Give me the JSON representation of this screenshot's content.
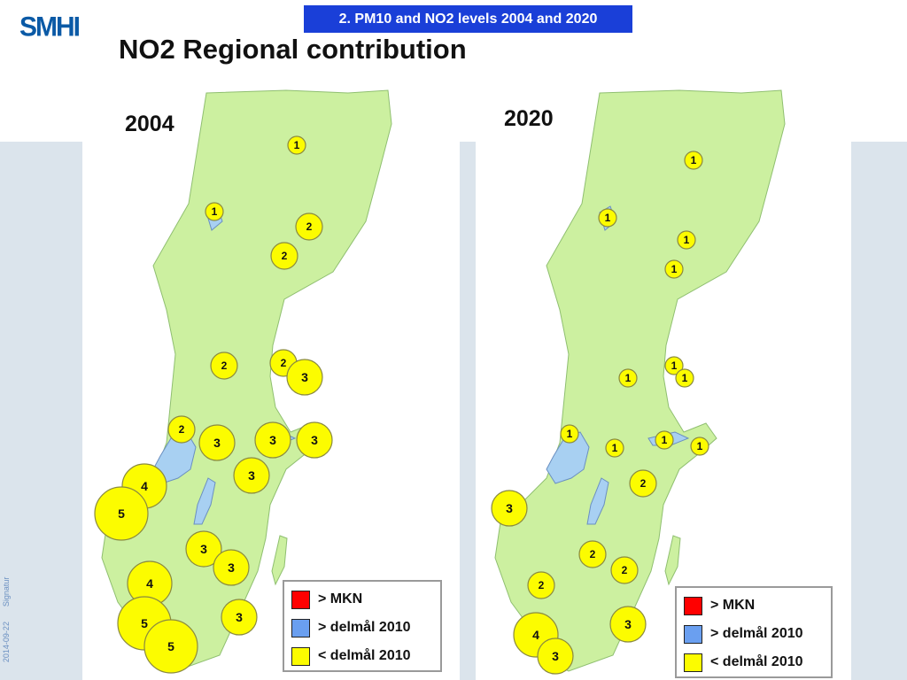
{
  "header": {
    "logo": "SMHI",
    "tag": "2. PM10 and NO2 levels 2004 and 2020",
    "title": "NO2 Regional contribution"
  },
  "side_text": {
    "date": "2014-09-22",
    "signature": "Signatur"
  },
  "colors": {
    "land": "#ccf0a0",
    "water": "#a8d0f2",
    "marker": "#fcfc00",
    "tag_bg": "#1a3fd8",
    "logo": "#0b5aa6"
  },
  "legend": {
    "items": [
      {
        "label": "> MKN",
        "color": "#ff0000"
      },
      {
        "label": "> delmål 2010",
        "color": "#6a9ff0"
      },
      {
        "label": "< delmål 2010",
        "color": "#fcfc00"
      }
    ]
  },
  "maps": [
    {
      "year": "2004",
      "markers": [
        {
          "value": "1"
        },
        {
          "value": "1"
        },
        {
          "value": "2"
        },
        {
          "value": "2"
        },
        {
          "value": "2"
        },
        {
          "value": "2"
        },
        {
          "value": "3"
        },
        {
          "value": "2"
        },
        {
          "value": "3"
        },
        {
          "value": "3"
        },
        {
          "value": "3"
        },
        {
          "value": "3"
        },
        {
          "value": "4"
        },
        {
          "value": "5"
        },
        {
          "value": "3"
        },
        {
          "value": "3"
        },
        {
          "value": "4"
        },
        {
          "value": "3"
        },
        {
          "value": "5"
        },
        {
          "value": "5"
        }
      ]
    },
    {
      "year": "2020",
      "markers": [
        {
          "value": "1"
        },
        {
          "value": "1"
        },
        {
          "value": "1"
        },
        {
          "value": "1"
        },
        {
          "value": "1"
        },
        {
          "value": "1"
        },
        {
          "value": "1"
        },
        {
          "value": "1"
        },
        {
          "value": "1"
        },
        {
          "value": "1"
        },
        {
          "value": "1"
        },
        {
          "value": "2"
        },
        {
          "value": "3"
        },
        {
          "value": "2"
        },
        {
          "value": "2"
        },
        {
          "value": "2"
        },
        {
          "value": "3"
        },
        {
          "value": "4"
        },
        {
          "value": "3"
        }
      ]
    }
  ]
}
